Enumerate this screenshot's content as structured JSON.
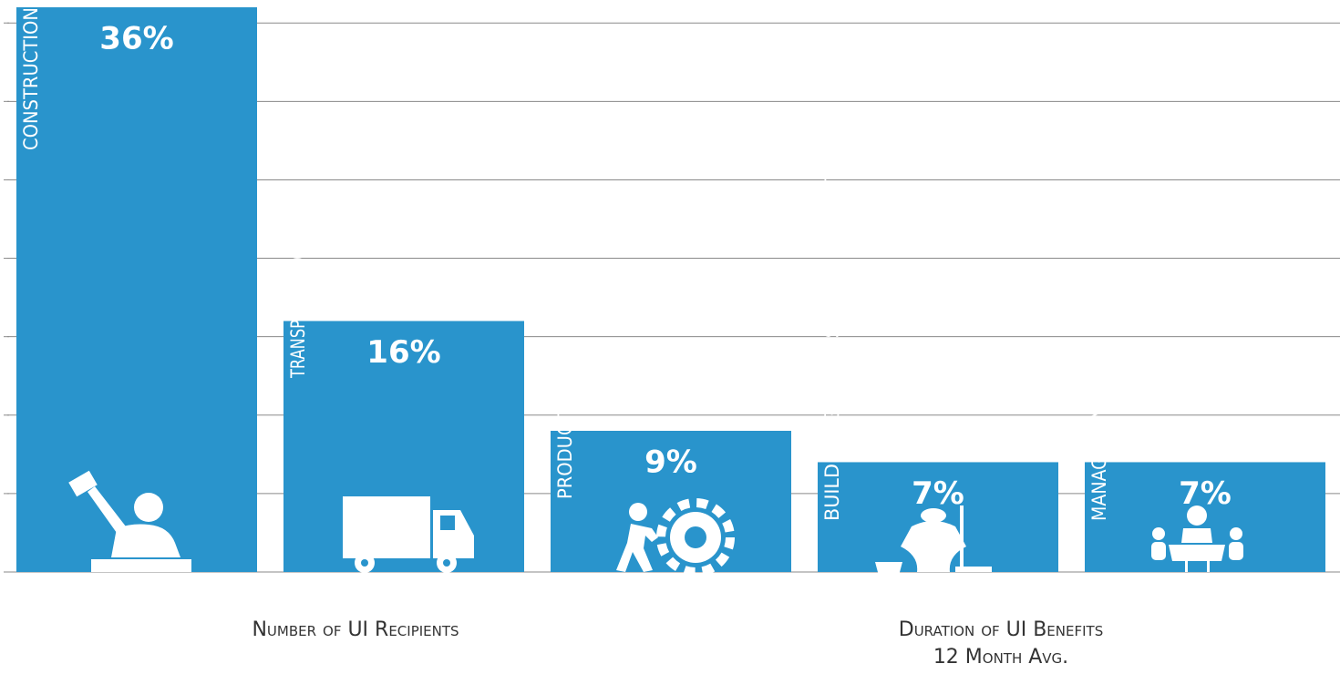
{
  "chart_data": {
    "type": "bar",
    "categories": [
      "CONSTRUCTION",
      "TRANSPORTATION",
      "PRODUCTION",
      "BUILDING\\GROUNDS CLEAN.&MAINTAIN",
      "MANAGEMENT"
    ],
    "values": [
      36,
      16,
      9,
      7,
      7
    ],
    "value_labels": [
      "36%",
      "16%",
      "9%",
      "7%",
      "7%"
    ],
    "color": "#2994cc",
    "ylim": [
      0,
      36
    ],
    "yticks": [
      0,
      5,
      10,
      15,
      20,
      25,
      30,
      35
    ],
    "grid": true,
    "xlabel": "Number of UI Recipients",
    "annotations": [
      "Duration of UI Benefits",
      "12 Month Avg."
    ]
  }
}
